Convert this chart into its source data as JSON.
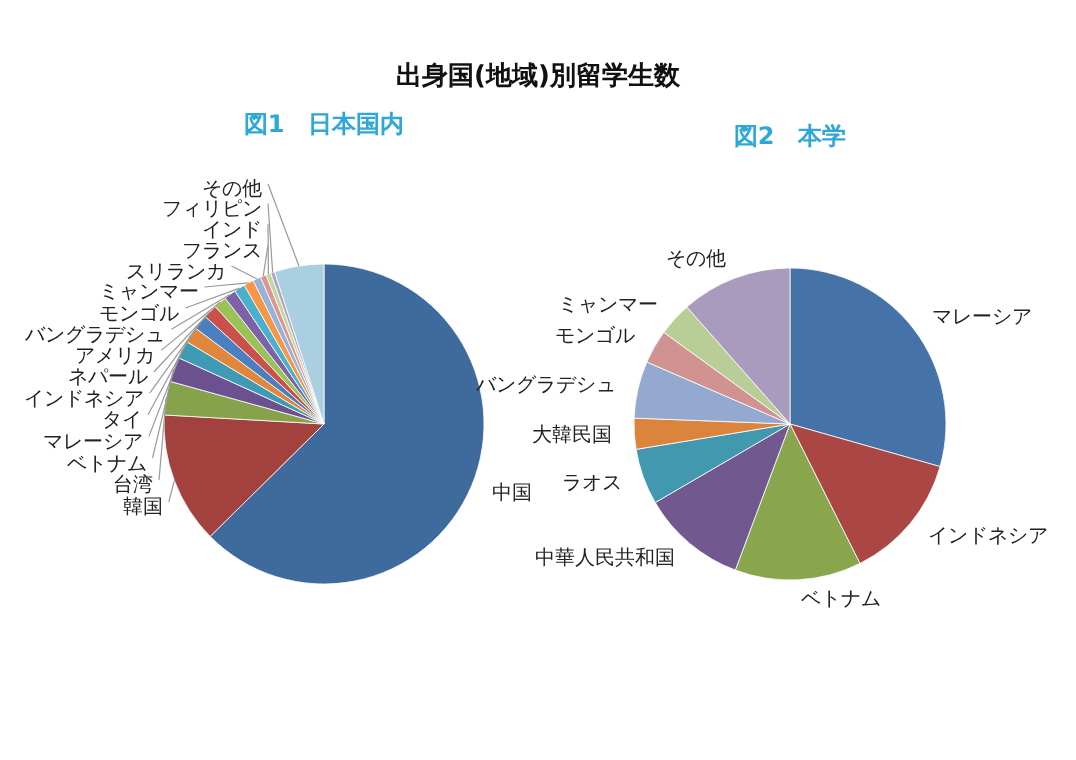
{
  "chart_data": [
    {
      "type": "pie",
      "title": "図1　日本国内",
      "annotations": [
        "出身国(地域)別留学生数"
      ],
      "categories": [
        "中国",
        "韓国",
        "台湾",
        "ベトナム",
        "マレーシア",
        "タイ",
        "インドネシア",
        "ネパール",
        "アメリカ",
        "バングラデシュ",
        "モンゴル",
        "ミャンマー",
        "スリランカ",
        "フランス",
        "インド",
        "フィリピン",
        "その他"
      ],
      "values": [
        62.6,
        13.3,
        3.4,
        2.5,
        1.8,
        1.6,
        1.5,
        1.4,
        1.3,
        1.2,
        1.1,
        1.0,
        0.8,
        0.6,
        0.5,
        0.4,
        5.0
      ],
      "colors": [
        "#3f6a9c",
        "#a3413f",
        "#86a24a",
        "#6b5190",
        "#3f9bb5",
        "#e0873b",
        "#4a7fc0",
        "#c9504b",
        "#9bc257",
        "#7e62a8",
        "#4bb0cc",
        "#f79646",
        "#95b3d7",
        "#d99694",
        "#c3d69b",
        "#b3a2c7",
        "#a9cfe0"
      ]
    },
    {
      "type": "pie",
      "title": "図2　本学",
      "categories": [
        "マレーシア",
        "インドネシア",
        "ベトナム",
        "中華人民共和国",
        "ラオス",
        "大韓民国",
        "バングラデシュ",
        "モンゴル",
        "ミャンマー",
        "その他"
      ],
      "values": [
        29.4,
        13.2,
        13.1,
        10.9,
        5.8,
        3.2,
        5.9,
        3.5,
        3.5,
        11.5
      ],
      "colors": [
        "#4572a7",
        "#aa4643",
        "#89a54e",
        "#71588f",
        "#4198af",
        "#db843d",
        "#93a9cf",
        "#d19392",
        "#b9cd96",
        "#a99bbd"
      ]
    }
  ]
}
